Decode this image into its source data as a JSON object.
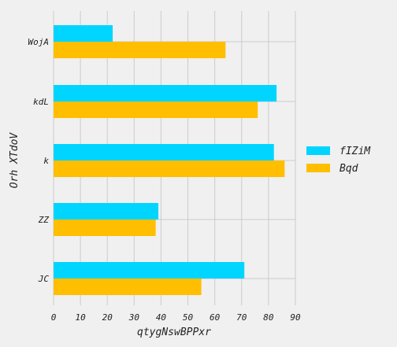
{
  "chart_data": {
    "type": "bar",
    "orientation": "horizontal",
    "categories": [
      "WojA",
      "kdL",
      "k",
      "ZZ",
      "JC"
    ],
    "series": [
      {
        "name": "fIZiM",
        "color": "#00d5ff",
        "values": [
          22,
          83,
          82,
          39,
          71
        ]
      },
      {
        "name": "Bqd",
        "color": "#ffbf00",
        "values": [
          64,
          76,
          86,
          38,
          55
        ]
      }
    ],
    "xlabel": "qtygNswBPPxr",
    "ylabel": "Orh XTdoV",
    "xlim": [
      0,
      90
    ],
    "xticks": [
      "0",
      "10",
      "20",
      "30",
      "40",
      "50",
      "60",
      "70",
      "80",
      "90"
    ],
    "grid": true,
    "legend_position": "center-right",
    "background": "#f0f0f0"
  }
}
